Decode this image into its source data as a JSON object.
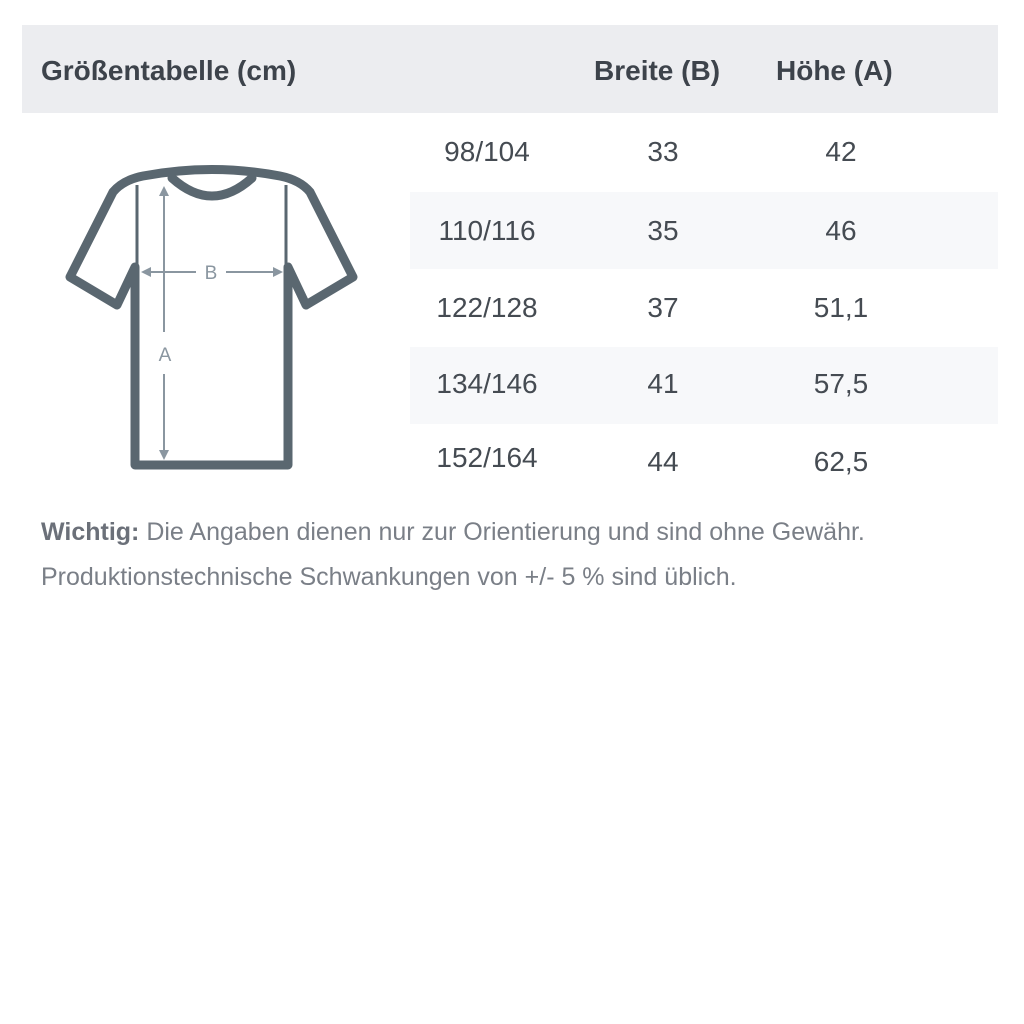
{
  "header": {
    "title": "Größentabelle (cm)",
    "col_width": "Breite (B)",
    "col_height": "Höhe (A)"
  },
  "diagram": {
    "label_width": "B",
    "label_height": "A",
    "shirt_color": "#5a6770",
    "arrow_color": "#8a96a0"
  },
  "rows": [
    {
      "size": "98/104",
      "width": "33",
      "height": "42"
    },
    {
      "size": "110/116",
      "width": "35",
      "height": "46"
    },
    {
      "size": "122/128",
      "width": "37",
      "height": "51,1"
    },
    {
      "size": "134/146",
      "width": "41",
      "height": "57,5"
    },
    {
      "size": "152/164",
      "width": "44",
      "height": "62,5"
    }
  ],
  "note": {
    "label": "Wichtig:",
    "line1": " Die Angaben dienen nur zur Orientierung und sind ohne Gewähr.",
    "line2": "Produktionstechnische Schwankungen von +/- 5 % sind üblich."
  }
}
